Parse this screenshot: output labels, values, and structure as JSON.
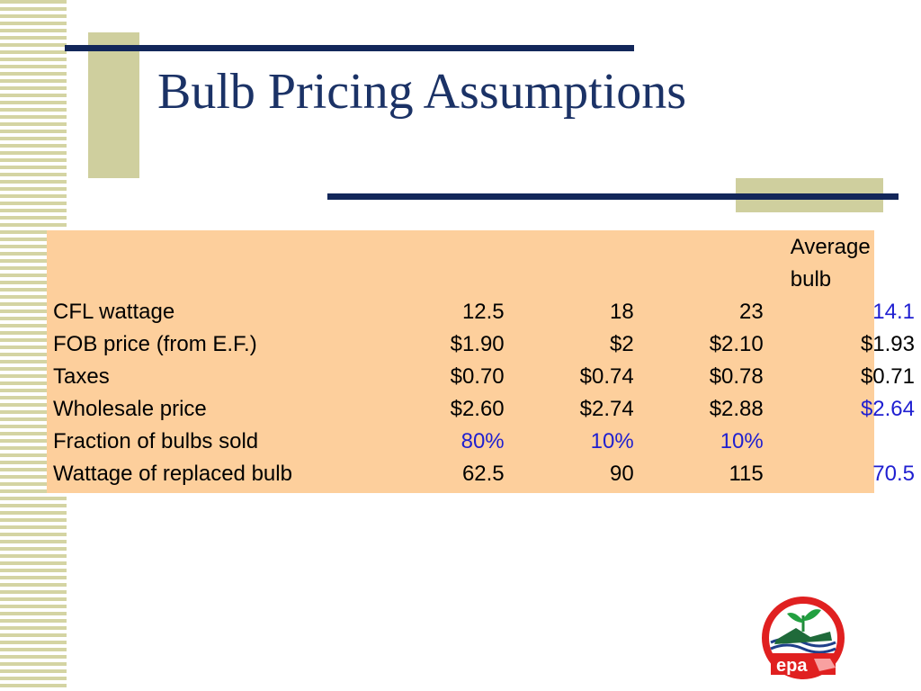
{
  "slide": {
    "title": "Bulb Pricing Assumptions"
  },
  "colors": {
    "title": "#1b3266",
    "navy_line": "#13275a",
    "beige_accent": "#cfcf9e",
    "table_background": "#fdcf9c",
    "highlight_value": "#1f1fd1"
  },
  "table": {
    "header": {
      "average_line1": "Average",
      "average_line2": "bulb"
    },
    "rows": [
      {
        "label": "CFL wattage",
        "v1": "12.5",
        "v2": "18",
        "v3": "23",
        "avg": "14.1"
      },
      {
        "label": "FOB price (from E.F.)",
        "v1": "$1.90",
        "v2": "$2",
        "v3": "$2.10",
        "avg": "$1.93"
      },
      {
        "label": "Taxes",
        "v1": "$0.70",
        "v2": "$0.74",
        "v3": "$0.78",
        "avg": "$0.71"
      },
      {
        "label": "Wholesale price",
        "v1": "$2.60",
        "v2": "$2.74",
        "v3": "$2.88",
        "avg": "$2.64"
      },
      {
        "label": "Fraction of bulbs sold",
        "v1": "80%",
        "v2": "10%",
        "v3": "10%",
        "avg": ""
      },
      {
        "label": "Wattage of replaced bulb",
        "v1": "62.5",
        "v2": "90",
        "v3": "115",
        "avg": "70.5"
      }
    ]
  },
  "logo": {
    "text": "epa",
    "icon": "epa-logo-icon"
  }
}
